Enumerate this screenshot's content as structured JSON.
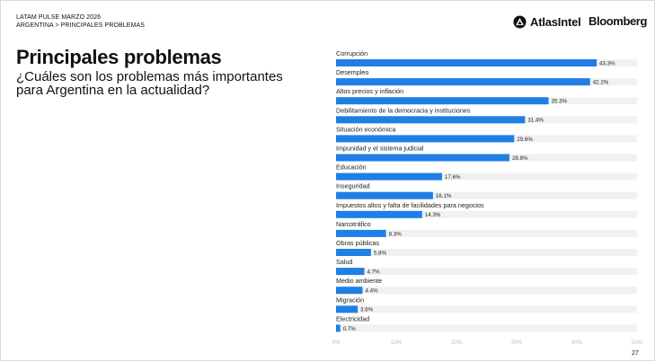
{
  "header": {
    "line1": "LATAM PULSE MARZO 2026",
    "line2": "ARGENTINA > PRINCIPALES PROBLEMAS"
  },
  "logos": {
    "atlas_text": "AtlasIntel",
    "bloomberg_text": "Bloomberg"
  },
  "title": "Principales problemas",
  "subtitle": "¿Cuáles son los problemas más importantes para Argentina en la actualidad?",
  "page_number": "27",
  "colors": {
    "bar": "#1f7fe5",
    "track": "#f1f1f1",
    "axis_text": "#bbbbbb"
  },
  "chart_data": {
    "type": "bar",
    "orientation": "horizontal",
    "categories": [
      "Corrupción",
      "Desempleo",
      "Altos precios y inflación",
      "Debilitamiento de la democracia y instituciones",
      "Situación económica",
      "Impunidad y el sistema judicial",
      "Educación",
      "Inseguridad",
      "Impuestos altos y falta de facilidades para negocios",
      "Narcotráfico",
      "Obras públicas",
      "Salud",
      "Medio ambiente",
      "Migración",
      "Electricidad"
    ],
    "values": [
      43.3,
      42.2,
      35.3,
      31.4,
      29.6,
      28.8,
      17.6,
      16.1,
      14.3,
      8.3,
      5.8,
      4.7,
      4.4,
      3.6,
      0.7
    ],
    "value_labels": [
      "43.3%",
      "42.2%",
      "35.3%",
      "31.4%",
      "29.6%",
      "28.8%",
      "17.6%",
      "16.1%",
      "14.3%",
      "8.3%",
      "5.8%",
      "4.7%",
      "4.4%",
      "3.6%",
      "0.7%"
    ],
    "xlim": [
      0,
      50
    ],
    "x_ticks": [
      0,
      10,
      20,
      30,
      40,
      50
    ],
    "x_tick_labels": [
      "0%",
      "10%",
      "20%",
      "30%",
      "40%",
      "50%"
    ],
    "grid": false,
    "legend": "none"
  }
}
